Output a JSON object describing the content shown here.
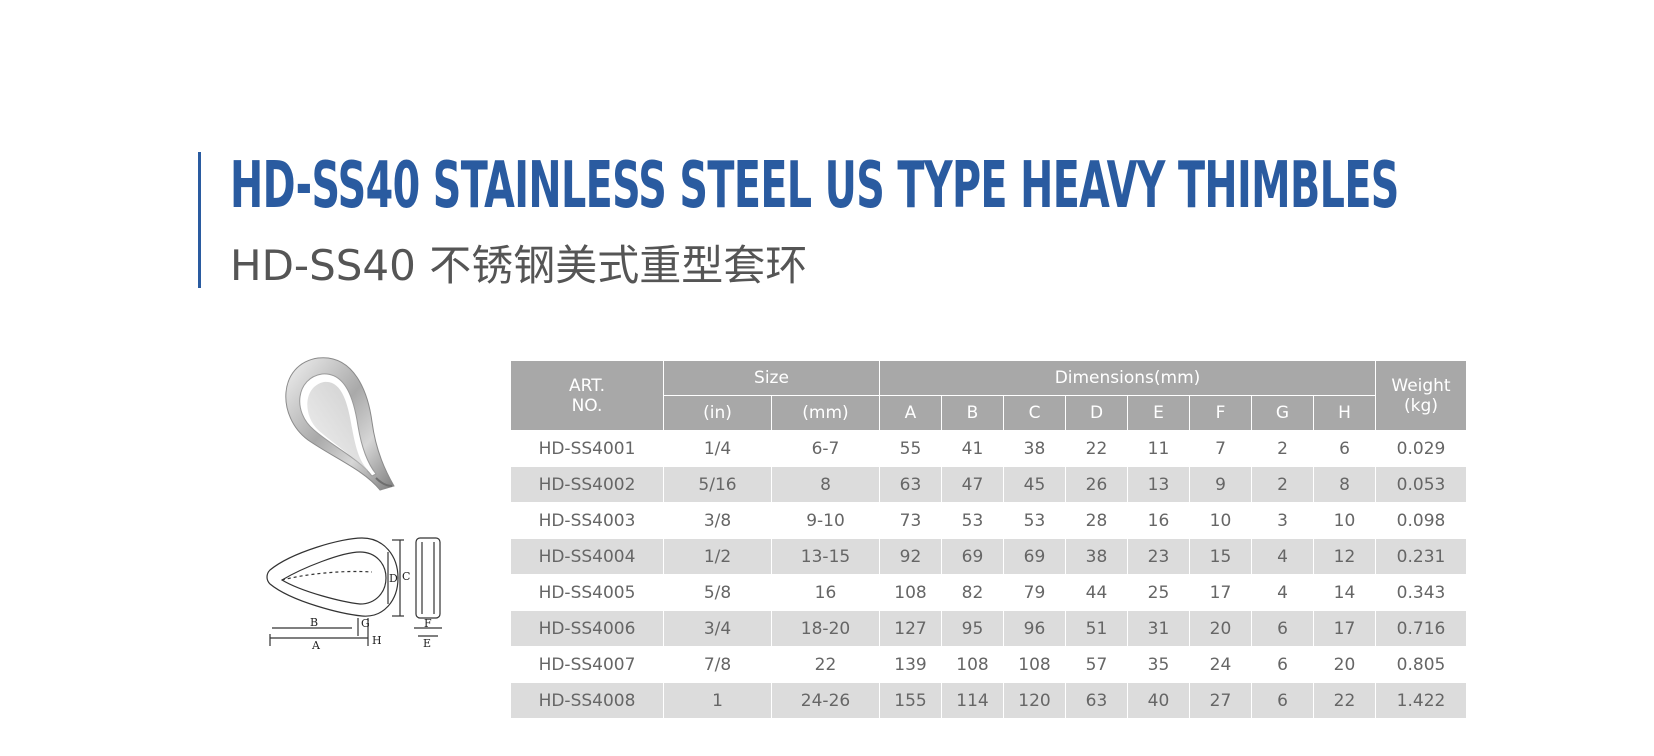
{
  "title_en": "HD-SS40 STAINLESS STEEL US TYPE HEAVY THIMBLES",
  "title_cn": "HD-SS40 不锈钢美式重型套环",
  "drawing_labels": [
    "A",
    "B",
    "C",
    "D",
    "E",
    "F",
    "G",
    "H"
  ],
  "table": {
    "art_no_header": [
      "ART.",
      "NO."
    ],
    "size_header": "Size",
    "dimensions_header": "Dimensions(mm)",
    "weight_header": [
      "Weight",
      "(kg)"
    ],
    "sub_headers": [
      "(in)",
      "(mm)",
      "A",
      "B",
      "C",
      "D",
      "E",
      "F",
      "G",
      "H"
    ],
    "rows": [
      [
        "HD-SS4001",
        "1/4",
        "6-7",
        "55",
        "41",
        "38",
        "22",
        "11",
        "7",
        "2",
        "6",
        "0.029"
      ],
      [
        "HD-SS4002",
        "5/16",
        "8",
        "63",
        "47",
        "45",
        "26",
        "13",
        "9",
        "2",
        "8",
        "0.053"
      ],
      [
        "HD-SS4003",
        "3/8",
        "9-10",
        "73",
        "53",
        "53",
        "28",
        "16",
        "10",
        "3",
        "10",
        "0.098"
      ],
      [
        "HD-SS4004",
        "1/2",
        "13-15",
        "92",
        "69",
        "69",
        "38",
        "23",
        "15",
        "4",
        "12",
        "0.231"
      ],
      [
        "HD-SS4005",
        "5/8",
        "16",
        "108",
        "82",
        "79",
        "44",
        "25",
        "17",
        "4",
        "14",
        "0.343"
      ],
      [
        "HD-SS4006",
        "3/4",
        "18-20",
        "127",
        "95",
        "96",
        "51",
        "31",
        "20",
        "6",
        "17",
        "0.716"
      ],
      [
        "HD-SS4007",
        "7/8",
        "22",
        "139",
        "108",
        "108",
        "57",
        "35",
        "24",
        "6",
        "20",
        "0.805"
      ],
      [
        "HD-SS4008",
        "1",
        "24-26",
        "155",
        "114",
        "120",
        "63",
        "40",
        "27",
        "6",
        "22",
        "1.422"
      ]
    ]
  }
}
